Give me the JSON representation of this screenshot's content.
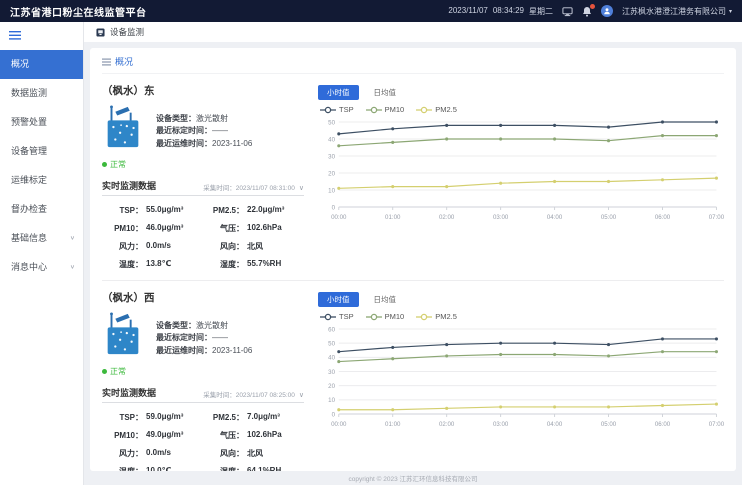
{
  "header": {
    "title": "江苏省港口粉尘在线监管平台",
    "date": "2023/11/07",
    "time": "08:34:29",
    "weekday": "星期二",
    "company": "江苏枫水港澄江港务有限公司"
  },
  "sidebar": {
    "items": [
      {
        "label": "概况",
        "active": true,
        "chevron": false
      },
      {
        "label": "数据监测",
        "active": false,
        "chevron": false
      },
      {
        "label": "预警处置",
        "active": false,
        "chevron": false
      },
      {
        "label": "设备管理",
        "active": false,
        "chevron": false
      },
      {
        "label": "运维标定",
        "active": false,
        "chevron": false
      },
      {
        "label": "督办检查",
        "active": false,
        "chevron": false
      },
      {
        "label": "基础信息",
        "active": false,
        "chevron": true
      },
      {
        "label": "消息中心",
        "active": false,
        "chevron": true
      }
    ]
  },
  "topbar": {
    "tab_label": "设备监测"
  },
  "overview": {
    "breadcrumb": "概况"
  },
  "chart_controls": {
    "hour_tab": "小时值",
    "day_tab": "日均值",
    "legend": [
      "TSP",
      "PM10",
      "PM2.5"
    ]
  },
  "cards": [
    {
      "title": "（枫水）东",
      "device": {
        "type_label": "设备类型：",
        "type_value": "激光散射",
        "calib_label": "最近标定时间：",
        "calib_value": "——",
        "maintain_label": "最近运维时间：",
        "maintain_value": "2023-11-06",
        "status": "正常"
      },
      "realtime": {
        "title": "实时监测数据",
        "collect_time": "采集时间：2023/11/07 08:31:00",
        "metrics": [
          {
            "label": "TSP：",
            "value": "55.0μg/m³"
          },
          {
            "label": "PM2.5：",
            "value": "22.0μg/m³"
          },
          {
            "label": "PM10：",
            "value": "46.0μg/m³"
          },
          {
            "label": "气压：",
            "value": "102.6hPa"
          },
          {
            "label": "风力：",
            "value": "0.0m/s"
          },
          {
            "label": "风向：",
            "value": "北风"
          },
          {
            "label": "温度：",
            "value": "13.8℃"
          },
          {
            "label": "湿度：",
            "value": "55.7%RH"
          }
        ]
      }
    },
    {
      "title": "（枫水）西",
      "device": {
        "type_label": "设备类型：",
        "type_value": "激光散射",
        "calib_label": "最近标定时间：",
        "calib_value": "——",
        "maintain_label": "最近运维时间：",
        "maintain_value": "2023-11-06",
        "status": "正常"
      },
      "realtime": {
        "title": "实时监测数据",
        "collect_time": "采集时间：2023/11/07 08:25:00",
        "metrics": [
          {
            "label": "TSP：",
            "value": "59.0μg/m³"
          },
          {
            "label": "PM2.5：",
            "value": "7.0μg/m³"
          },
          {
            "label": "PM10：",
            "value": "49.0μg/m³"
          },
          {
            "label": "气压：",
            "value": "102.6hPa"
          },
          {
            "label": "风力：",
            "value": "0.0m/s"
          },
          {
            "label": "风向：",
            "value": "北风"
          },
          {
            "label": "温度：",
            "value": "10.0℃"
          },
          {
            "label": "湿度：",
            "value": "64.1%RH"
          }
        ]
      }
    }
  ],
  "chart_data": [
    {
      "type": "line",
      "title": "（枫水）东 小时值",
      "x": [
        "00:00",
        "01:00",
        "02:00",
        "03:00",
        "04:00",
        "05:00",
        "06:00",
        "07:00"
      ],
      "xlabel": "",
      "ylabel": "",
      "ylim": [
        0,
        50
      ],
      "ytick_step": 10,
      "grid": true,
      "legend_position": "top",
      "series": [
        {
          "name": "TSP",
          "color": "#3d4f63",
          "values": [
            43,
            46,
            48,
            48,
            48,
            47,
            50,
            50
          ]
        },
        {
          "name": "PM10",
          "color": "#8ca774",
          "values": [
            36,
            38,
            40,
            40,
            40,
            39,
            42,
            42
          ]
        },
        {
          "name": "PM2.5",
          "color": "#d4cf6f",
          "values": [
            11,
            12,
            12,
            14,
            15,
            15,
            16,
            17
          ]
        }
      ]
    },
    {
      "type": "line",
      "title": "（枫水）西 小时值",
      "x": [
        "00:00",
        "01:00",
        "02:00",
        "03:00",
        "04:00",
        "05:00",
        "06:00",
        "07:00"
      ],
      "xlabel": "",
      "ylabel": "",
      "ylim": [
        0,
        60
      ],
      "ytick_step": 10,
      "grid": true,
      "legend_position": "top",
      "series": [
        {
          "name": "TSP",
          "color": "#3d4f63",
          "values": [
            44,
            47,
            49,
            50,
            50,
            49,
            53,
            53
          ]
        },
        {
          "name": "PM10",
          "color": "#8ca774",
          "values": [
            37,
            39,
            41,
            42,
            42,
            41,
            44,
            44
          ]
        },
        {
          "name": "PM2.5",
          "color": "#d4cf6f",
          "values": [
            3,
            3,
            4,
            5,
            5,
            5,
            6,
            7
          ]
        }
      ]
    }
  ],
  "footer": {
    "copyright": "copyright © 2023 江苏汇环信息科技有限公司"
  },
  "colors": {
    "accent": "#2f6bd9",
    "header_bg": "#121a34",
    "sidebar_active": "#3570d2",
    "status_ok": "#3cb93c",
    "tsp": "#3d4f63",
    "pm10": "#8ca774",
    "pm25": "#d4cf6f"
  }
}
